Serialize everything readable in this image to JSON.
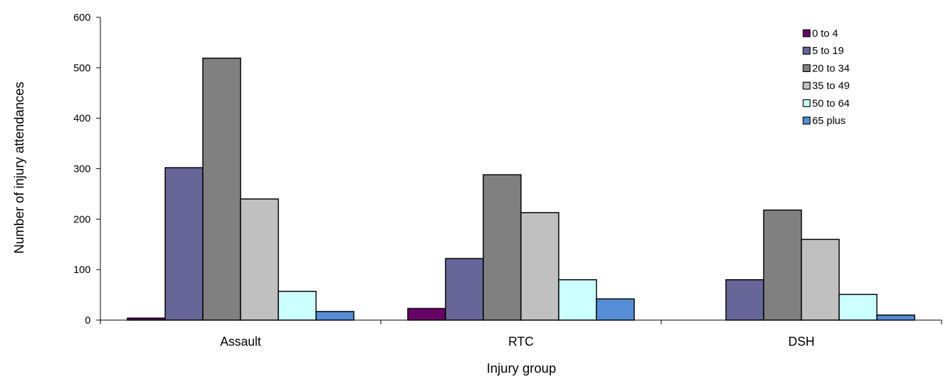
{
  "chart_data": {
    "type": "bar",
    "xlabel": "Injury group",
    "ylabel": "Number of injury attendances",
    "ylim": [
      0,
      600
    ],
    "yticks": [
      0,
      100,
      200,
      300,
      400,
      500,
      600
    ],
    "grid": false,
    "legend_position": "top-right",
    "categories": [
      "Assault",
      "RTC",
      "DSH"
    ],
    "series": [
      {
        "name": "0 to 4",
        "color": "#660066",
        "values": [
          4,
          23,
          0
        ]
      },
      {
        "name": "5 to 19",
        "color": "#666699",
        "values": [
          302,
          122,
          80
        ]
      },
      {
        "name": "20 to 34",
        "color": "#808080",
        "values": [
          519,
          288,
          218
        ]
      },
      {
        "name": "35 to 49",
        "color": "#c0c0c0",
        "values": [
          240,
          213,
          160
        ]
      },
      {
        "name": "50 to 64",
        "color": "#ccffff",
        "values": [
          57,
          80,
          51
        ]
      },
      {
        "name": "65 plus",
        "color": "#558ed5",
        "values": [
          17,
          42,
          10
        ]
      }
    ]
  }
}
